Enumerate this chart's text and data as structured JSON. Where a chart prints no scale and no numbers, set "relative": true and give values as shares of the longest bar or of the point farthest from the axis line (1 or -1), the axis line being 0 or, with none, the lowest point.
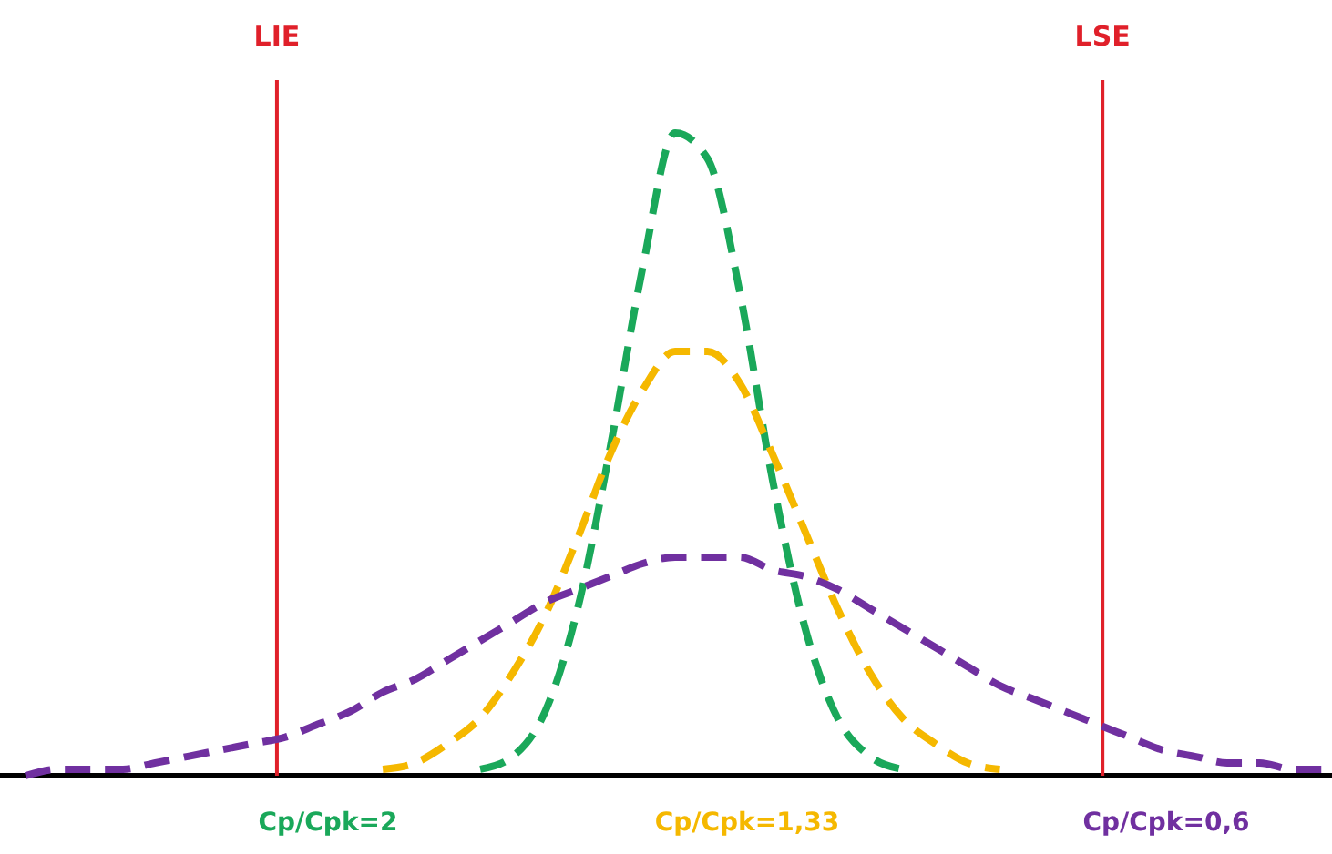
{
  "chart_data": {
    "type": "line",
    "relative": true,
    "line_style": "dashed",
    "marker": "none",
    "grid": false,
    "legend": "bottom",
    "categories": [
      null,
      null,
      null,
      null,
      null,
      null,
      null,
      null,
      null,
      null,
      null,
      null,
      null,
      null,
      null,
      null,
      null,
      null,
      null,
      null,
      null,
      null,
      null,
      null,
      null,
      null,
      null,
      null,
      null,
      null,
      null,
      null,
      null,
      null,
      null,
      null,
      null,
      null,
      null,
      null,
      null
    ],
    "series": [
      {
        "name": "Cp/Cpk=2",
        "color": "#1aa85a",
        "values": [
          null,
          null,
          null,
          null,
          null,
          null,
          null,
          null,
          null,
          null,
          null,
          null,
          null,
          null,
          0.01,
          0.03,
          0.1,
          0.26,
          0.51,
          0.79,
          1,
          0.96,
          0.75,
          0.46,
          0.23,
          0.09,
          0.03,
          0.01,
          null,
          null,
          null,
          null,
          null,
          null,
          null,
          null,
          null,
          null,
          null,
          null,
          null
        ]
      },
      {
        "name": "Cp/Cpk=1,33",
        "color": "#f5b800",
        "values": [
          null,
          null,
          null,
          null,
          null,
          null,
          null,
          null,
          null,
          null,
          null,
          0.01,
          0.02,
          0.05,
          0.09,
          0.16,
          0.25,
          0.37,
          0.5,
          0.6,
          0.66,
          0.66,
          0.61,
          0.5,
          0.38,
          0.26,
          0.16,
          0.09,
          0.05,
          0.02,
          0.01,
          null,
          null,
          null,
          null,
          null,
          null,
          null,
          null,
          null,
          null
        ]
      },
      {
        "name": "Cp/Cpk=0,6",
        "color": "#7030a0",
        "values": [
          0,
          0.01,
          0.01,
          0.01,
          0.02,
          0.03,
          0.04,
          0.05,
          0.06,
          0.08,
          0.1,
          0.13,
          0.15,
          0.18,
          0.21,
          0.24,
          0.27,
          0.29,
          0.31,
          0.33,
          0.34,
          0.34,
          0.34,
          0.32,
          0.31,
          0.29,
          0.26,
          0.23,
          0.2,
          0.17,
          0.14,
          0.12,
          0.1,
          0.08,
          0.06,
          0.04,
          0.03,
          0.02,
          0.02,
          0.01,
          0.01
        ]
      }
    ],
    "annotations": [
      "LIE",
      "LSE"
    ]
  }
}
